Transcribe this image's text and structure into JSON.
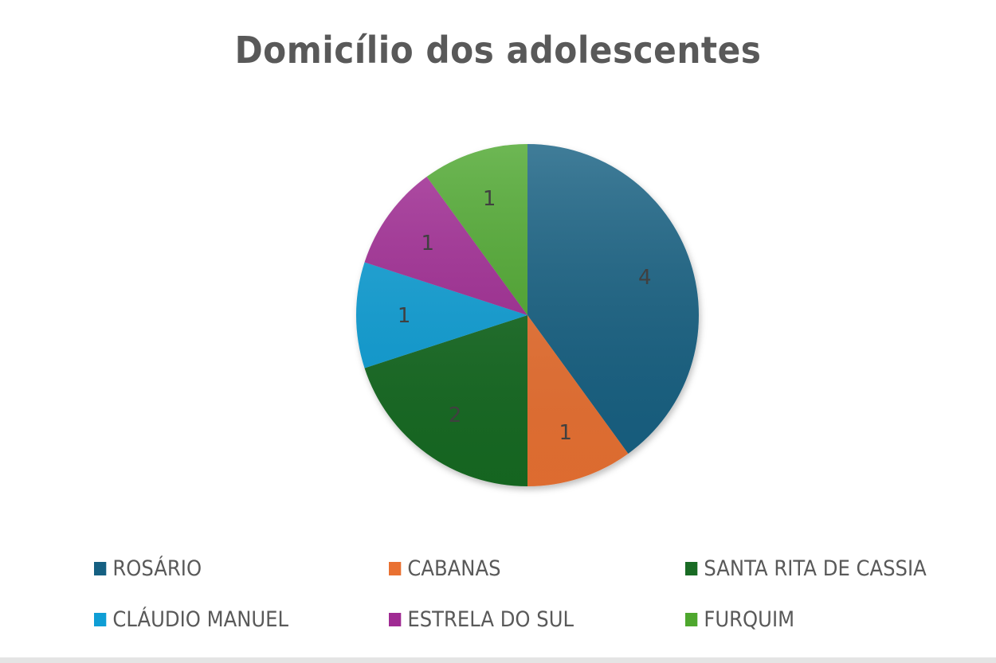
{
  "chart_data": {
    "type": "pie",
    "title": "Domicílio dos adolescentes",
    "categories": [
      "ROSÁRIO",
      "CABANAS",
      "SANTA RITA DE CASSIA",
      "CLÁUDIO MANUEL",
      "ESTRELA DO SUL",
      "FURQUIM"
    ],
    "values": [
      4,
      1,
      2,
      1,
      1,
      1
    ],
    "colors": [
      "#156082",
      "#E97132",
      "#196B24",
      "#0F9ED5",
      "#A02B93",
      "#4EA72E"
    ],
    "data_labels": [
      "4",
      "1",
      "2",
      "1",
      "1",
      "1"
    ],
    "start_angle": "12 o'clock, clockwise",
    "legend_position": "bottom"
  },
  "title": "Domicílio dos adolescentes",
  "legend": [
    {
      "label": "ROSÁRIO",
      "color": "#156082"
    },
    {
      "label": "CABANAS",
      "color": "#E97132"
    },
    {
      "label": "SANTA RITA DE CASSIA",
      "color": "#196B24"
    },
    {
      "label": "CLÁUDIO MANUEL",
      "color": "#0F9ED5"
    },
    {
      "label": "ESTRELA DO SUL",
      "color": "#A02B93"
    },
    {
      "label": "FURQUIM",
      "color": "#4EA72E"
    }
  ]
}
